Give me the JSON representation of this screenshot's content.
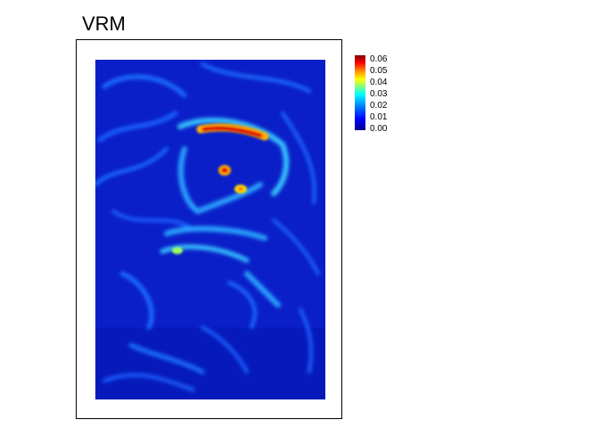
{
  "title": "VRM",
  "colors": {
    "scale": [
      "#00008f",
      "#0000ff",
      "#0080ff",
      "#00ffff",
      "#80ff80",
      "#ffff00",
      "#ff8000",
      "#ff0000",
      "#800000"
    ],
    "background_raster": "#0a1fc8"
  },
  "chart_data": {
    "type": "heatmap",
    "title": "VRM",
    "legend": {
      "placement": "right",
      "labels": [
        "0.06",
        "0.05",
        "0.04",
        "0.03",
        "0.02",
        "0.01",
        "0.00"
      ],
      "range": [
        0.0,
        0.06
      ]
    },
    "note_values": {
      "typical_background": 0.005,
      "typical_ridges": 0.02,
      "peak_band": 0.06,
      "peak_spots": 0.05
    }
  }
}
